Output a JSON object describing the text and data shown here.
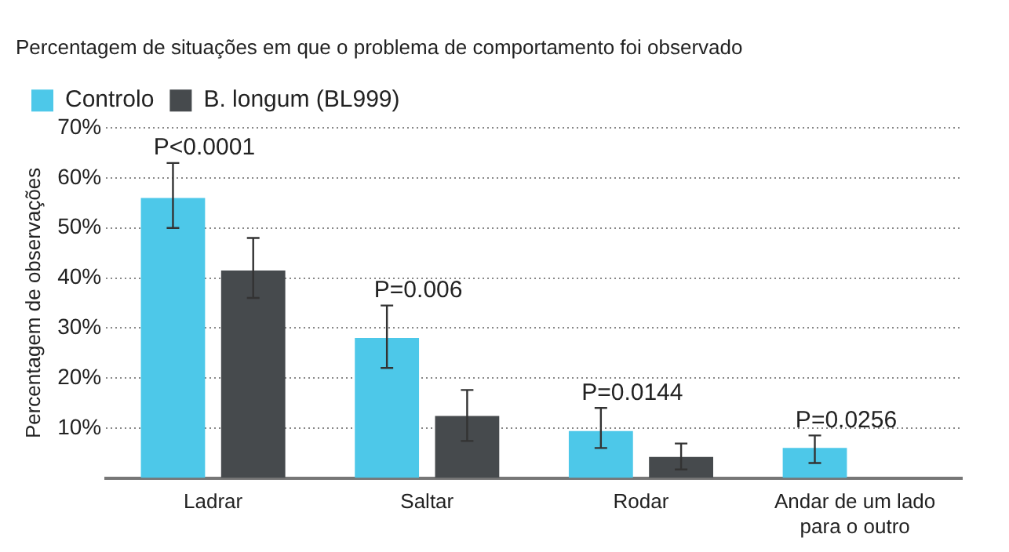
{
  "chart_data": {
    "type": "bar",
    "title": "Percentagem de situações em que o problema de comportamento foi observado",
    "ylabel": "Percentagem de observações",
    "categories": [
      "Ladrar",
      "Saltar",
      "Rodar",
      "Andar de um lado para o outro"
    ],
    "series": [
      {
        "name": "Controlo",
        "color": "#4dc8e9",
        "values": [
          56,
          28,
          9.4,
          6
        ],
        "errors": [
          [
            50,
            63
          ],
          [
            22,
            34.5
          ],
          [
            6,
            14
          ],
          [
            3,
            8.5
          ]
        ]
      },
      {
        "name": "B. longum (BL999)",
        "color": "#464a4d",
        "values": [
          41.5,
          12.4,
          4.2,
          null
        ],
        "errors": [
          [
            36,
            48
          ],
          [
            7.4,
            17.6
          ],
          [
            1.7,
            6.9
          ],
          null
        ]
      }
    ],
    "ylim": [
      0,
      70
    ],
    "yticks": [
      {
        "value": 10,
        "label": "10%"
      },
      {
        "value": 20,
        "label": "20%"
      },
      {
        "value": 30,
        "label": "30%"
      },
      {
        "value": 40,
        "label": "40%"
      },
      {
        "value": 50,
        "label": "50%"
      },
      {
        "value": 60,
        "label": "60%"
      },
      {
        "value": 70,
        "label": "70%"
      }
    ],
    "grid": "y",
    "legend": "top left",
    "line_style": "dotted",
    "annotations": [
      "P<0.0001",
      "P=0.006",
      "P=0.0144",
      "P=0.0256"
    ]
  }
}
